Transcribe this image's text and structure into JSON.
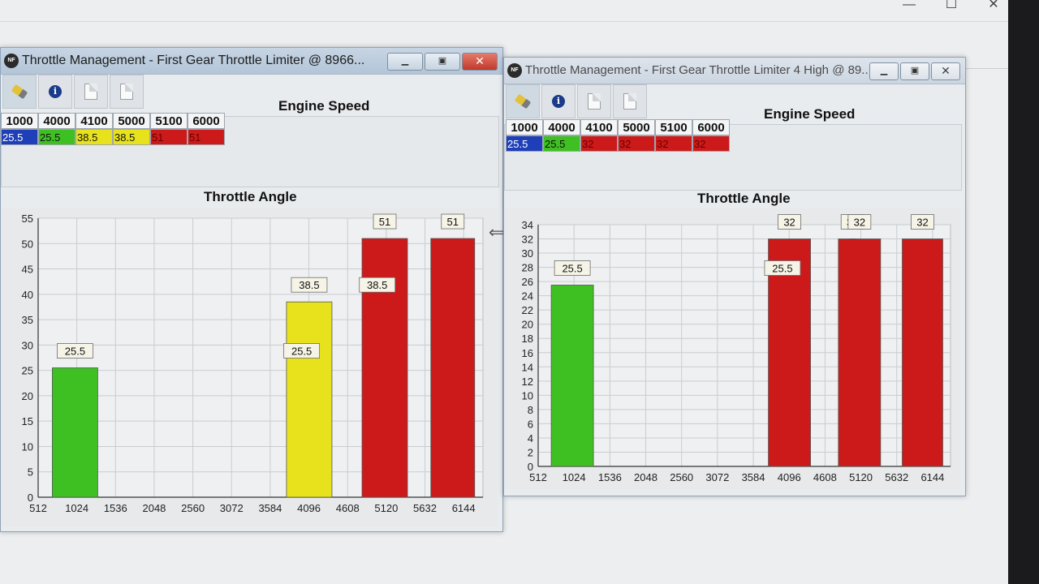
{
  "background_caption": {
    "minimize": "—",
    "restore": "☐",
    "close": "✕"
  },
  "windows": [
    {
      "title": "Throttle Management - First Gear Throttle Limiter @ 8966...",
      "icon_text": "NF",
      "engine_speed_title": "Engine Speed",
      "throttle_title": "Throttle Angle",
      "columns": [
        "1000",
        "4000",
        "4100",
        "5000",
        "5100",
        "6000"
      ],
      "values": [
        "25.5",
        "25.5",
        "38.5",
        "38.5",
        "51",
        "51"
      ],
      "colors": [
        "#1f3fb8",
        "#3fc022",
        "#e8e21c",
        "#e8e21c",
        "#cc1a1a",
        "#cc1a1a"
      ],
      "value_text_colors": [
        "#ffffff",
        "#111111",
        "#111111",
        "#111111",
        "#6a0000",
        "#6a0000"
      ]
    },
    {
      "title": "Throttle Management - First Gear Throttle Limiter 4 High @ 89...",
      "icon_text": "NF",
      "engine_speed_title": "Engine Speed",
      "throttle_title": "Throttle Angle",
      "columns": [
        "1000",
        "4000",
        "4100",
        "5000",
        "5100",
        "6000"
      ],
      "values": [
        "25.5",
        "25.5",
        "32",
        "32",
        "32",
        "32"
      ],
      "colors": [
        "#1f3fb8",
        "#3fc022",
        "#cc1a1a",
        "#cc1a1a",
        "#cc1a1a",
        "#cc1a1a"
      ],
      "value_text_colors": [
        "#ffffff",
        "#111111",
        "#6a0000",
        "#6a0000",
        "#6a0000",
        "#6a0000"
      ]
    }
  ],
  "chart_data": [
    {
      "type": "bar",
      "title": "Throttle Angle",
      "xlim": [
        512,
        6400
      ],
      "ylim": [
        0,
        55
      ],
      "x_ticks": [
        "512",
        "1024",
        "1536",
        "2048",
        "2560",
        "3072",
        "3584",
        "4096",
        "4608",
        "5120",
        "5632",
        "6144"
      ],
      "y_ticks": [
        "0",
        "5",
        "10",
        "15",
        "20",
        "25",
        "30",
        "35",
        "40",
        "45",
        "50",
        "55"
      ],
      "bars": [
        {
          "x": 1000,
          "y": 25.5,
          "label": "25.5",
          "color": "#3fc022"
        },
        {
          "x": 4000,
          "y": 25.5,
          "label": "25.5",
          "color": "#3fc022"
        },
        {
          "x": 4100,
          "y": 38.5,
          "label": "38.5",
          "color": "#e8e21c"
        },
        {
          "x": 5000,
          "y": 38.5,
          "label": "38.5",
          "color": "#e8e21c"
        },
        {
          "x": 5100,
          "y": 51,
          "label": "51",
          "color": "#cc1a1a"
        },
        {
          "x": 6000,
          "y": 51,
          "label": "51",
          "color": "#cc1a1a"
        }
      ],
      "grid": true
    },
    {
      "type": "bar",
      "title": "Throttle Angle",
      "xlim": [
        512,
        6400
      ],
      "ylim": [
        0,
        34
      ],
      "x_ticks": [
        "512",
        "1024",
        "1536",
        "2048",
        "2560",
        "3072",
        "3584",
        "4096",
        "4608",
        "5120",
        "5632",
        "6144"
      ],
      "y_ticks": [
        "0",
        "2",
        "4",
        "6",
        "8",
        "10",
        "12",
        "14",
        "16",
        "18",
        "20",
        "22",
        "24",
        "26",
        "28",
        "30",
        "32",
        "34"
      ],
      "bars": [
        {
          "x": 1000,
          "y": 25.5,
          "label": "25.5",
          "color": "#3fc022"
        },
        {
          "x": 4000,
          "y": 25.5,
          "label": "25.5",
          "color": "#3fc022"
        },
        {
          "x": 4100,
          "y": 32,
          "label": "32",
          "color": "#cc1a1a"
        },
        {
          "x": 5000,
          "y": 32,
          "label": "32",
          "color": "#cc1a1a"
        },
        {
          "x": 5100,
          "y": 32,
          "label": "32",
          "color": "#cc1a1a"
        },
        {
          "x": 6000,
          "y": 32,
          "label": "32",
          "color": "#cc1a1a"
        }
      ],
      "grid": true
    }
  ]
}
